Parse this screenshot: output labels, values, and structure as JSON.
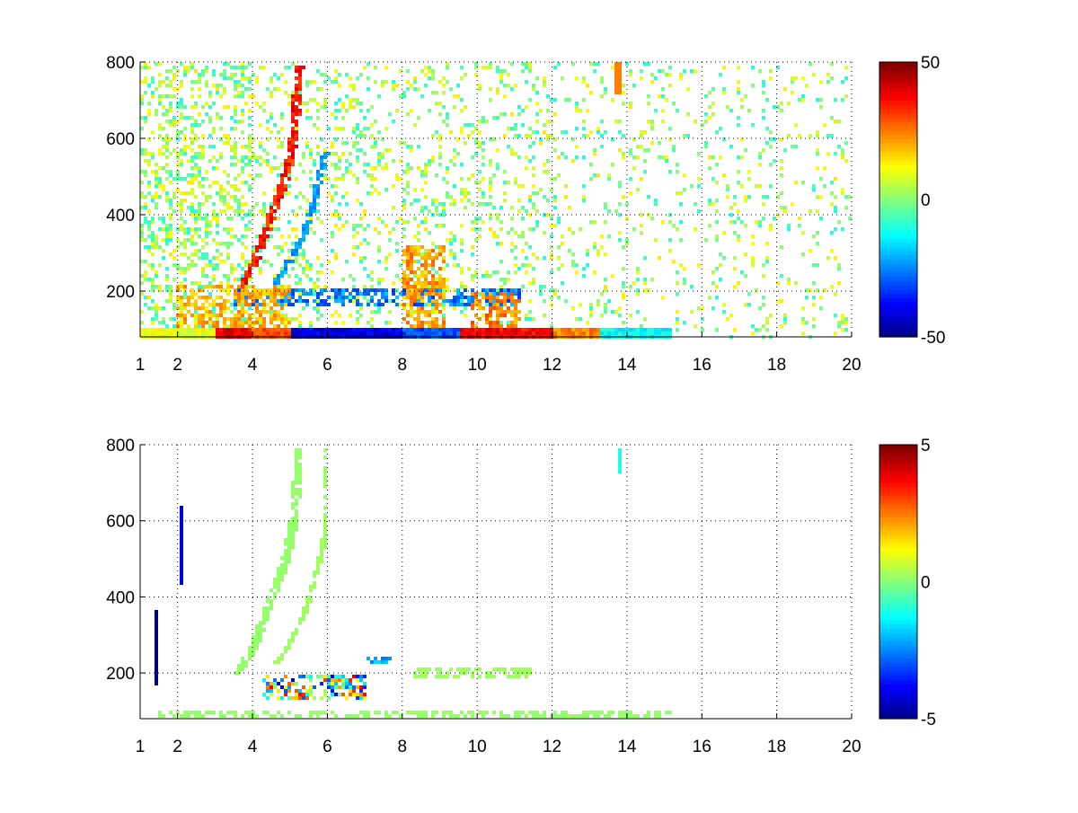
{
  "figure": {
    "background": "#ffffff"
  },
  "chart_data": [
    {
      "type": "heatmap",
      "title": "",
      "xlabel": "",
      "ylabel": "",
      "xlim": [
        1,
        20
      ],
      "ylim": [
        80,
        800
      ],
      "x_ticks": [
        1,
        2,
        4,
        6,
        8,
        10,
        12,
        14,
        16,
        18,
        20
      ],
      "y_ticks": [
        200,
        400,
        600,
        800
      ],
      "grid": true,
      "grid_style": "dotted",
      "colormap": "jet",
      "colorbar": {
        "min": -50,
        "max": 50,
        "ticks": [
          -50,
          0,
          50
        ]
      },
      "features": [
        {
          "kind": "ridge",
          "points": [
            [
              3.6,
              200
            ],
            [
              4.0,
              260
            ],
            [
              4.3,
              340
            ],
            [
              4.6,
              420
            ],
            [
              4.9,
              500
            ],
            [
              5.1,
              600
            ],
            [
              5.2,
              720
            ],
            [
              5.25,
              790
            ]
          ],
          "value": 35,
          "halfwidth_x": 0.12
        },
        {
          "kind": "ridge",
          "points": [
            [
              4.6,
              220
            ],
            [
              5.0,
              280
            ],
            [
              5.3,
              330
            ],
            [
              5.6,
              420
            ],
            [
              5.8,
              500
            ],
            [
              5.95,
              560
            ]
          ],
          "value": -22,
          "halfwidth_x": 0.1
        },
        {
          "kind": "band",
          "x": [
            1.0,
            15.2
          ],
          "y": [
            80,
            100
          ],
          "segments": [
            [
              1.0,
              3.0,
              10
            ],
            [
              3.0,
              4.0,
              40
            ],
            [
              4.0,
              5.0,
              30
            ],
            [
              5.0,
              8.0,
              -40
            ],
            [
              8.0,
              9.5,
              -30
            ],
            [
              9.5,
              12.0,
              38
            ],
            [
              12.0,
              13.3,
              25
            ],
            [
              13.3,
              15.2,
              -12
            ]
          ]
        },
        {
          "kind": "band",
          "x": [
            3.5,
            11.2
          ],
          "y": [
            160,
            210
          ],
          "value": -25
        },
        {
          "kind": "band",
          "x": [
            8.0,
            9.2
          ],
          "y": [
            100,
            320
          ],
          "value": 22
        },
        {
          "kind": "band",
          "x": [
            9.8,
            11.2
          ],
          "y": [
            100,
            200
          ],
          "value": 24
        },
        {
          "kind": "band",
          "x": [
            2.0,
            5.0
          ],
          "y": [
            100,
            220
          ],
          "value": 20
        },
        {
          "kind": "patch",
          "x": [
            13.7,
            13.9
          ],
          "y": [
            720,
            800
          ],
          "value": 25
        }
      ],
      "background_noise": {
        "x": [
          1,
          20
        ],
        "y": [
          80,
          800
        ],
        "values": [
          -10,
          15
        ]
      }
    },
    {
      "type": "heatmap",
      "title": "",
      "xlabel": "",
      "ylabel": "",
      "xlim": [
        1,
        20
      ],
      "ylim": [
        80,
        800
      ],
      "x_ticks": [
        1,
        2,
        4,
        6,
        8,
        10,
        12,
        14,
        16,
        18,
        20
      ],
      "y_ticks": [
        200,
        400,
        600,
        800
      ],
      "grid": true,
      "grid_style": "dotted",
      "colormap": "jet",
      "colorbar": {
        "min": -5,
        "max": 5,
        "ticks": [
          -5,
          0,
          5
        ]
      },
      "features": [
        {
          "kind": "ridge",
          "points": [
            [
              3.6,
              200
            ],
            [
              4.0,
              260
            ],
            [
              4.3,
              340
            ],
            [
              4.6,
              420
            ],
            [
              4.9,
              500
            ],
            [
              5.1,
              600
            ],
            [
              5.2,
              720
            ],
            [
              5.25,
              790
            ]
          ],
          "value": 0.2,
          "halfwidth_x": 0.12
        },
        {
          "kind": "ridge",
          "points": [
            [
              4.6,
              220
            ],
            [
              5.0,
              280
            ],
            [
              5.3,
              330
            ],
            [
              5.6,
              420
            ],
            [
              5.8,
              500
            ],
            [
              5.95,
              560
            ],
            [
              5.95,
              790
            ]
          ],
          "value": 0.3,
          "halfwidth_x": 0.08
        },
        {
          "kind": "band",
          "x": [
            1.5,
            15.2
          ],
          "y": [
            80,
            100
          ],
          "value": 0.2
        },
        {
          "kind": "band",
          "x": [
            4.3,
            7.0
          ],
          "y": [
            130,
            200
          ],
          "values": [
            -4,
            4
          ]
        },
        {
          "kind": "band",
          "x": [
            7.0,
            7.8
          ],
          "y": [
            225,
            240
          ],
          "value": -2
        },
        {
          "kind": "band",
          "x": [
            8.2,
            11.5
          ],
          "y": [
            190,
            210
          ],
          "value": 0.3
        },
        {
          "kind": "line",
          "x": 1.4,
          "y": [
            170,
            370
          ],
          "value": -5
        },
        {
          "kind": "line",
          "x": 2.1,
          "y": [
            430,
            640
          ],
          "value": -4
        },
        {
          "kind": "patch",
          "x": [
            13.75,
            13.9
          ],
          "y": [
            720,
            790
          ],
          "value": -1
        }
      ],
      "background_noise": {
        "x": [
          1,
          20
        ],
        "y": [
          80,
          800
        ],
        "values": []
      }
    }
  ]
}
